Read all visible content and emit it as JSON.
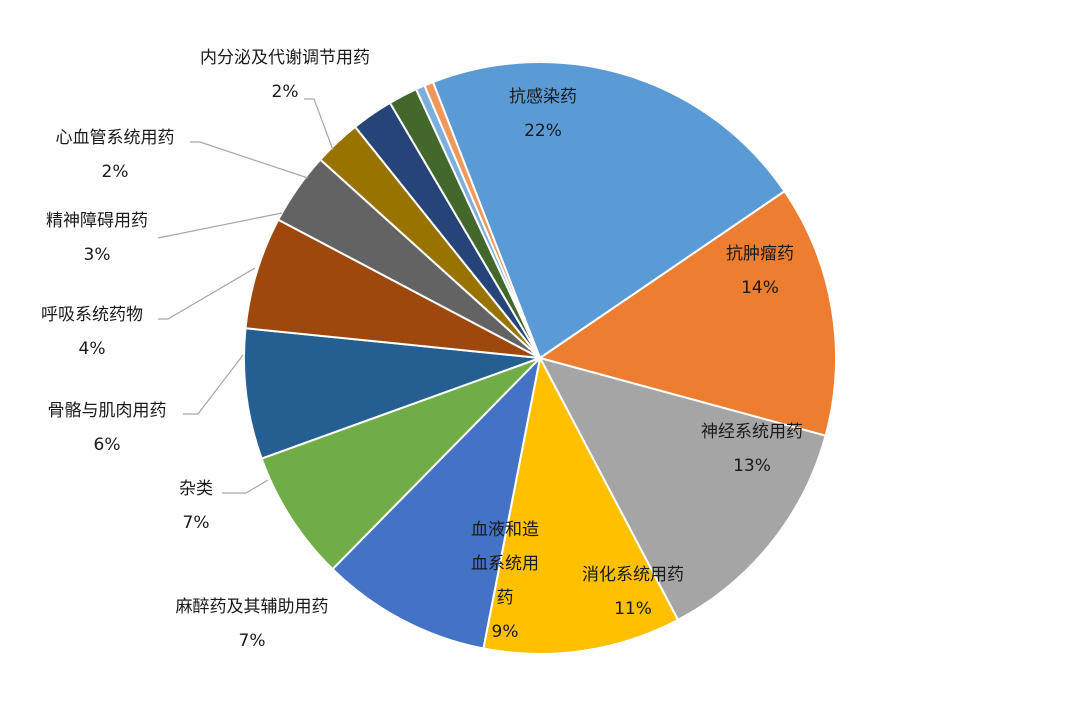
{
  "chart_data": {
    "type": "pie",
    "title": "",
    "slices": [
      {
        "label": "抗感染药",
        "pct_label": "22%",
        "value": 21.6,
        "color": "#5B9BD5"
      },
      {
        "label": "抗肿瘤药",
        "pct_label": "14%",
        "value": 13.9,
        "color": "#ED7D31"
      },
      {
        "label": "神经系统用药",
        "pct_label": "13%",
        "value": 13.2,
        "color": "#A5A5A5"
      },
      {
        "label": "消化系统用药",
        "pct_label": "11%",
        "value": 10.9,
        "color": "#FFC000"
      },
      {
        "label": "血液和造血系统用药",
        "label_lines": [
          "血液和造",
          "血系统用",
          "药"
        ],
        "pct_label": "9%",
        "value": 9.4,
        "color": "#4472C4"
      },
      {
        "label": "麻醉药及其辅助用药",
        "pct_label": "7%",
        "value": 7.2,
        "color": "#70AD47"
      },
      {
        "label": "杂类",
        "pct_label": "7%",
        "value": 7.2,
        "color": "#255E91"
      },
      {
        "label": "骨骼与肌肉用药",
        "pct_label": "6%",
        "value": 6.2,
        "color": "#9E480E"
      },
      {
        "label": "呼吸系统药物",
        "pct_label": "4%",
        "value": 4.0,
        "color": "#636363"
      },
      {
        "label": "精神障碍用药",
        "pct_label": "3%",
        "value": 2.6,
        "color": "#997300"
      },
      {
        "label": "心血管系统用药",
        "pct_label": "2%",
        "value": 2.3,
        "color": "#264478"
      },
      {
        "label": "内分泌及代谢调节用药",
        "pct_label": "2%",
        "value": 1.6,
        "color": "#43682B"
      },
      {
        "label": "",
        "pct_label": "",
        "value": 0.5,
        "color": "#7CAFDD"
      },
      {
        "label": "",
        "pct_label": "",
        "value": 0.5,
        "color": "#F1975A"
      }
    ]
  }
}
